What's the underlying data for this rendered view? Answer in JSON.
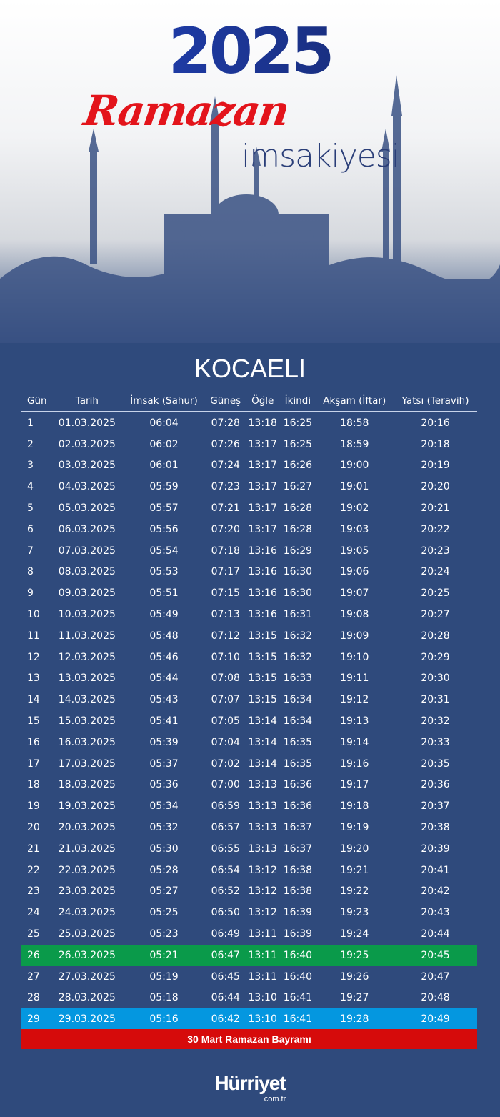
{
  "header": {
    "year": "2025",
    "title": "Ramazan",
    "subtitle": "imsakiyesi"
  },
  "city": "KOCAELI",
  "columns": [
    "Gün",
    "Tarih",
    "İmsak (Sahur)",
    "Güneş",
    "Öğle",
    "İkindi",
    "Akşam (İftar)",
    "Yatsı (Teravih)"
  ],
  "rows": [
    [
      "1",
      "01.03.2025",
      "06:04",
      "07:28",
      "13:18",
      "16:25",
      "18:58",
      "20:16"
    ],
    [
      "2",
      "02.03.2025",
      "06:02",
      "07:26",
      "13:17",
      "16:25",
      "18:59",
      "20:18"
    ],
    [
      "3",
      "03.03.2025",
      "06:01",
      "07:24",
      "13:17",
      "16:26",
      "19:00",
      "20:19"
    ],
    [
      "4",
      "04.03.2025",
      "05:59",
      "07:23",
      "13:17",
      "16:27",
      "19:01",
      "20:20"
    ],
    [
      "5",
      "05.03.2025",
      "05:57",
      "07:21",
      "13:17",
      "16:28",
      "19:02",
      "20:21"
    ],
    [
      "6",
      "06.03.2025",
      "05:56",
      "07:20",
      "13:17",
      "16:28",
      "19:03",
      "20:22"
    ],
    [
      "7",
      "07.03.2025",
      "05:54",
      "07:18",
      "13:16",
      "16:29",
      "19:05",
      "20:23"
    ],
    [
      "8",
      "08.03.2025",
      "05:53",
      "07:17",
      "13:16",
      "16:30",
      "19:06",
      "20:24"
    ],
    [
      "9",
      "09.03.2025",
      "05:51",
      "07:15",
      "13:16",
      "16:30",
      "19:07",
      "20:25"
    ],
    [
      "10",
      "10.03.2025",
      "05:49",
      "07:13",
      "13:16",
      "16:31",
      "19:08",
      "20:27"
    ],
    [
      "11",
      "11.03.2025",
      "05:48",
      "07:12",
      "13:15",
      "16:32",
      "19:09",
      "20:28"
    ],
    [
      "12",
      "12.03.2025",
      "05:46",
      "07:10",
      "13:15",
      "16:32",
      "19:10",
      "20:29"
    ],
    [
      "13",
      "13.03.2025",
      "05:44",
      "07:08",
      "13:15",
      "16:33",
      "19:11",
      "20:30"
    ],
    [
      "14",
      "14.03.2025",
      "05:43",
      "07:07",
      "13:15",
      "16:34",
      "19:12",
      "20:31"
    ],
    [
      "15",
      "15.03.2025",
      "05:41",
      "07:05",
      "13:14",
      "16:34",
      "19:13",
      "20:32"
    ],
    [
      "16",
      "16.03.2025",
      "05:39",
      "07:04",
      "13:14",
      "16:35",
      "19:14",
      "20:33"
    ],
    [
      "17",
      "17.03.2025",
      "05:37",
      "07:02",
      "13:14",
      "16:35",
      "19:16",
      "20:35"
    ],
    [
      "18",
      "18.03.2025",
      "05:36",
      "07:00",
      "13:13",
      "16:36",
      "19:17",
      "20:36"
    ],
    [
      "19",
      "19.03.2025",
      "05:34",
      "06:59",
      "13:13",
      "16:36",
      "19:18",
      "20:37"
    ],
    [
      "20",
      "20.03.2025",
      "05:32",
      "06:57",
      "13:13",
      "16:37",
      "19:19",
      "20:38"
    ],
    [
      "21",
      "21.03.2025",
      "05:30",
      "06:55",
      "13:13",
      "16:37",
      "19:20",
      "20:39"
    ],
    [
      "22",
      "22.03.2025",
      "05:28",
      "06:54",
      "13:12",
      "16:38",
      "19:21",
      "20:41"
    ],
    [
      "23",
      "23.03.2025",
      "05:27",
      "06:52",
      "13:12",
      "16:38",
      "19:22",
      "20:42"
    ],
    [
      "24",
      "24.03.2025",
      "05:25",
      "06:50",
      "13:12",
      "16:39",
      "19:23",
      "20:43"
    ],
    [
      "25",
      "25.03.2025",
      "05:23",
      "06:49",
      "13:11",
      "16:39",
      "19:24",
      "20:44"
    ],
    [
      "26",
      "26.03.2025",
      "05:21",
      "06:47",
      "13:11",
      "16:40",
      "19:25",
      "20:45"
    ],
    [
      "27",
      "27.03.2025",
      "05:19",
      "06:45",
      "13:11",
      "16:40",
      "19:26",
      "20:47"
    ],
    [
      "28",
      "28.03.2025",
      "05:18",
      "06:44",
      "13:10",
      "16:41",
      "19:27",
      "20:48"
    ],
    [
      "29",
      "29.03.2025",
      "05:16",
      "06:42",
      "13:10",
      "16:41",
      "19:28",
      "20:49"
    ]
  ],
  "highlights": {
    "26": "green",
    "29": "blue"
  },
  "colors": {
    "background": "#2f4a7c",
    "green": "#0a9a4a",
    "blue": "#0497e0",
    "red": "#d60b0b"
  },
  "footer_note": "30 Mart Ramazan Bayramı",
  "logo": {
    "brand": "Hürriyet",
    "domain": "com.tr"
  }
}
